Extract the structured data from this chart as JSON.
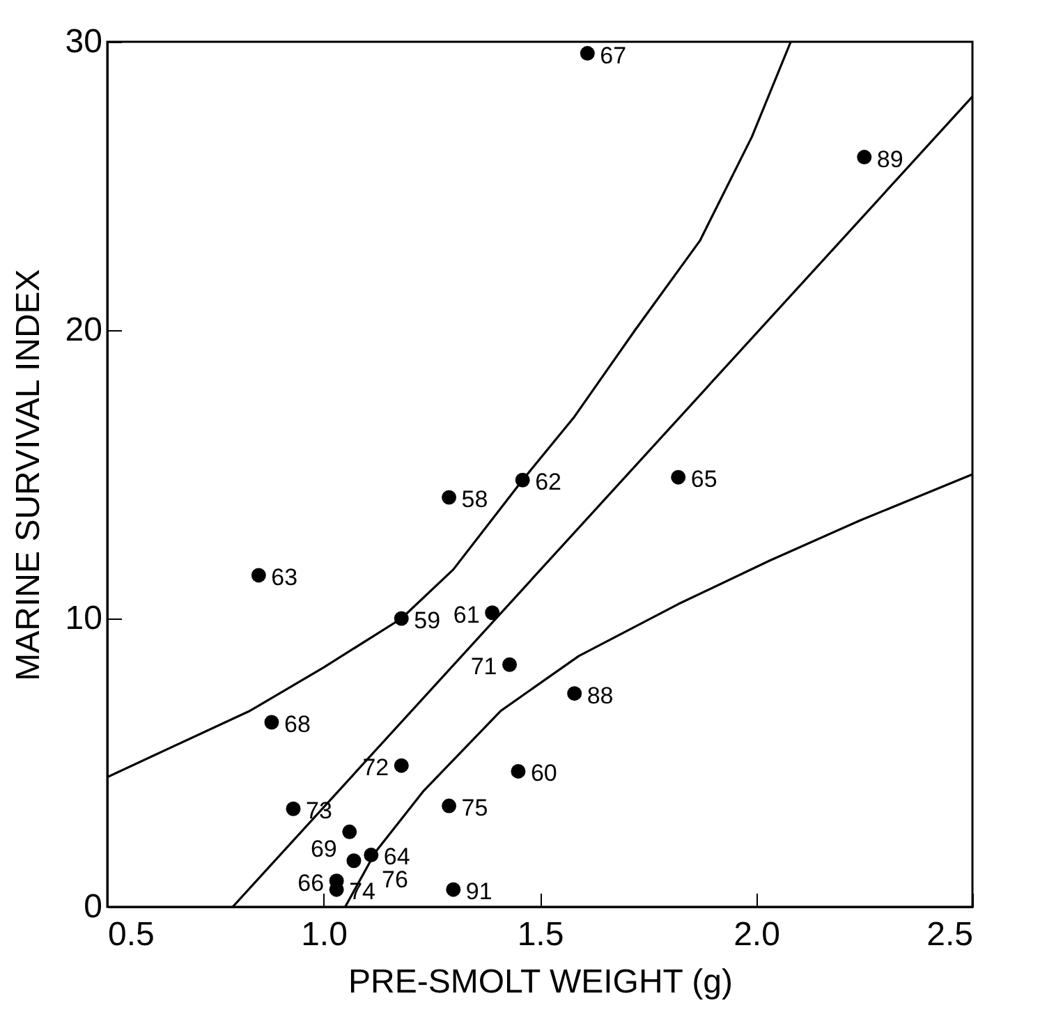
{
  "chart_data": {
    "type": "scatter",
    "xlabel": "PRE-SMOLT WEIGHT (g)",
    "ylabel": "MARINE SURVIVAL INDEX",
    "xlim": [
      0.5,
      2.5
    ],
    "xticks": [
      {
        "value": 0.5,
        "label": "0.5"
      },
      {
        "value": 1,
        "label": "1.0"
      },
      {
        "value": 1.5,
        "label": "1.5"
      },
      {
        "value": 2,
        "label": "2.0"
      },
      {
        "value": 2.5,
        "label": "2.5"
      }
    ],
    "ylim": [
      0,
      30
    ],
    "yticks": [
      0,
      10,
      20,
      30
    ],
    "grid": false,
    "series": [
      {
        "color": "#000000",
        "marker": "circle",
        "x": [
          1.61,
          2.25,
          1.82,
          1.46,
          1.29,
          0.85,
          1.18,
          1.39,
          1.43,
          1.58,
          0.88,
          1.18,
          1.45,
          1.29,
          0.93,
          1.06,
          1.11,
          1.07,
          1.03,
          1.03,
          1.3
        ],
        "values": [
          29.6,
          26.0,
          14.9,
          14.8,
          14.2,
          11.5,
          10.0,
          10.2,
          8.4,
          7.4,
          6.4,
          4.9,
          4.7,
          3.5,
          3.4,
          2.6,
          1.8,
          1.6,
          0.9,
          0.6,
          0.6
        ]
      },
      {
        "type": "line",
        "color": "#000000",
        "line_style": "solid",
        "x": [
          0.79,
          2.5
        ],
        "values": [
          0,
          28.1
        ]
      },
      {
        "type": "line",
        "color": "#000000",
        "line_style": "solid",
        "x": [
          0.5,
          0.83,
          1.0,
          1.18,
          1.3,
          1.46,
          1.58,
          1.72,
          1.87,
          1.99,
          2.08
        ],
        "values": [
          4.5,
          6.8,
          8.3,
          10.0,
          11.7,
          14.8,
          17.0,
          20.0,
          23.1,
          26.7,
          30.0
        ]
      },
      {
        "type": "line",
        "color": "#000000",
        "line_style": "solid",
        "x": [
          1.05,
          1.12,
          1.23,
          1.41,
          1.59,
          1.82,
          2.03,
          2.24,
          2.5
        ],
        "values": [
          0,
          1.9,
          4.0,
          6.8,
          8.7,
          10.5,
          12.0,
          13.4,
          15.0
        ]
      }
    ],
    "annotations": [
      {
        "text": "67",
        "x": 1.61,
        "y": 29.6
      },
      {
        "text": "89",
        "x": 2.25,
        "y": 26.0
      },
      {
        "text": "65",
        "x": 1.82,
        "y": 14.9
      },
      {
        "text": "62",
        "x": 1.46,
        "y": 14.8
      },
      {
        "text": "58",
        "x": 1.29,
        "y": 14.2
      },
      {
        "text": "63",
        "x": 0.85,
        "y": 11.5
      },
      {
        "text": "59",
        "x": 1.18,
        "y": 10.0
      },
      {
        "text": "61",
        "x": 1.39,
        "y": 10.2
      },
      {
        "text": "71",
        "x": 1.43,
        "y": 8.4
      },
      {
        "text": "88",
        "x": 1.58,
        "y": 7.4
      },
      {
        "text": "68",
        "x": 0.88,
        "y": 6.4
      },
      {
        "text": "72",
        "x": 1.18,
        "y": 4.9
      },
      {
        "text": "60",
        "x": 1.45,
        "y": 4.7
      },
      {
        "text": "75",
        "x": 1.29,
        "y": 3.5
      },
      {
        "text": "73",
        "x": 0.93,
        "y": 3.4
      },
      {
        "text": "69",
        "x": 1.06,
        "y": 2.6
      },
      {
        "text": "64",
        "x": 1.11,
        "y": 1.8
      },
      {
        "text": "76",
        "x": 1.07,
        "y": 1.6
      },
      {
        "text": "66",
        "x": 1.03,
        "y": 0.9
      },
      {
        "text": "74",
        "x": 1.03,
        "y": 0.6
      },
      {
        "text": "91",
        "x": 1.3,
        "y": 0.6
      }
    ]
  }
}
